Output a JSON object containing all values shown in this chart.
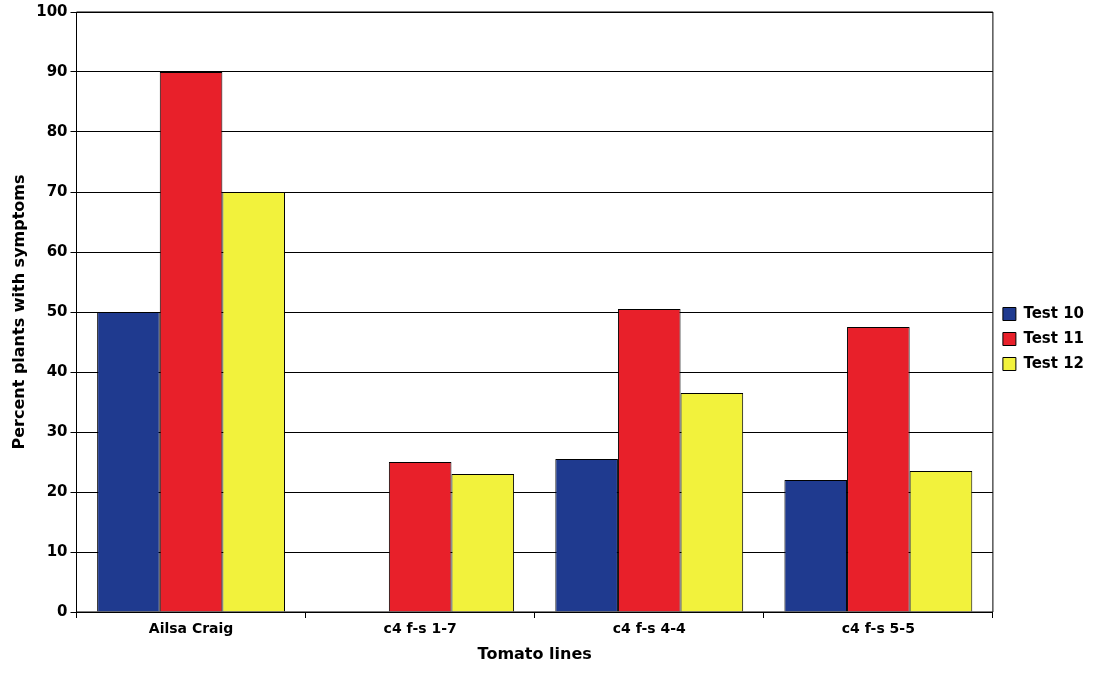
{
  "chart_data": {
    "type": "bar",
    "xlabel": "Tomato lines",
    "ylabel": "Percent plants with symptoms",
    "categories": [
      "Ailsa Craig",
      "c4 f-s 1-7",
      "c4 f-s 4-4",
      "c4 f-s 5-5"
    ],
    "series": [
      {
        "name": "Test 10",
        "color": "#1f3a8f",
        "values": [
          50,
          0,
          25.5,
          22
        ]
      },
      {
        "name": "Test 11",
        "color": "#e8202a",
        "values": [
          90,
          25,
          50.5,
          47.5
        ]
      },
      {
        "name": "Test 12",
        "color": "#f2f23c",
        "values": [
          70,
          23,
          36.5,
          23.5
        ]
      }
    ],
    "ylim": [
      0,
      100
    ],
    "yticks": [
      0,
      10,
      20,
      30,
      40,
      50,
      60,
      70,
      80,
      90,
      100
    ],
    "grid": "y",
    "legend": "right"
  }
}
